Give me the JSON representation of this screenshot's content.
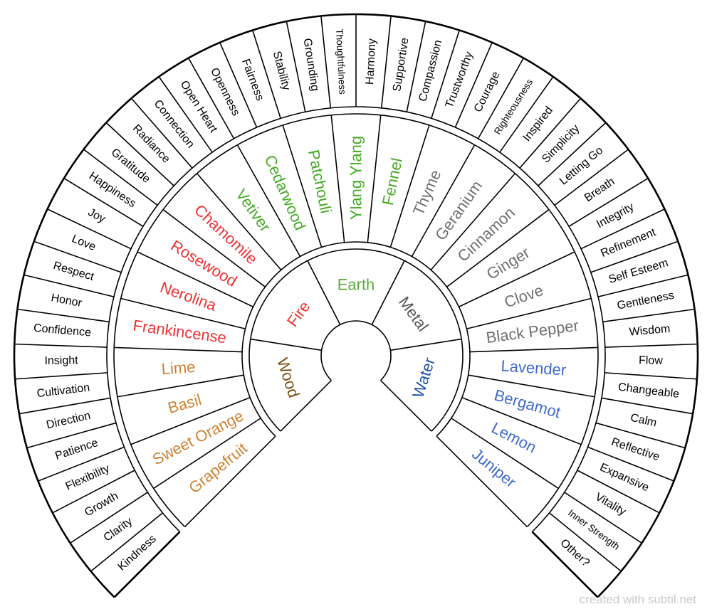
{
  "credit": "created with subtil.net",
  "colors": {
    "line": "#000000",
    "Wood": "#7a4f0e",
    "Fire": "#ee3333",
    "Earth": "#5aaa3c",
    "Metal": "#555555",
    "Water": "#1f4fa8",
    "wood_oil": "#cc8233",
    "fire_oil": "#ee3333",
    "earth_oil": "#44aa22",
    "metal_oil": "#6f6f6f",
    "water_oil": "#3f6acc"
  },
  "elements": [
    {
      "name": "Wood",
      "color_key": "Wood"
    },
    {
      "name": "Fire",
      "color_key": "Fire"
    },
    {
      "name": "Earth",
      "color_key": "Earth"
    },
    {
      "name": "Metal",
      "color_key": "Metal"
    },
    {
      "name": "Water",
      "color_key": "Water"
    }
  ],
  "oils": [
    {
      "name": "Grapefruit",
      "color_key": "wood_oil"
    },
    {
      "name": "Sweet Orange",
      "color_key": "wood_oil"
    },
    {
      "name": "Basil",
      "color_key": "wood_oil"
    },
    {
      "name": "Lime",
      "color_key": "wood_oil"
    },
    {
      "name": "Frankincense",
      "color_key": "fire_oil"
    },
    {
      "name": "Nerolina",
      "color_key": "fire_oil"
    },
    {
      "name": "Rosewood",
      "color_key": "fire_oil"
    },
    {
      "name": "Chamomile",
      "color_key": "fire_oil"
    },
    {
      "name": "Vetiver",
      "color_key": "earth_oil"
    },
    {
      "name": "Cedarwood",
      "color_key": "earth_oil"
    },
    {
      "name": "Patchouli",
      "color_key": "earth_oil"
    },
    {
      "name": "Ylang Ylang",
      "color_key": "earth_oil"
    },
    {
      "name": "Fennel",
      "color_key": "earth_oil"
    },
    {
      "name": "Thyme",
      "color_key": "metal_oil"
    },
    {
      "name": "Geranium",
      "color_key": "metal_oil"
    },
    {
      "name": "Cinnamon",
      "color_key": "metal_oil"
    },
    {
      "name": "Ginger",
      "color_key": "metal_oil"
    },
    {
      "name": "Clove",
      "color_key": "metal_oil"
    },
    {
      "name": "Black Pepper",
      "color_key": "metal_oil"
    },
    {
      "name": "Lavender",
      "color_key": "water_oil"
    },
    {
      "name": "Bergamot",
      "color_key": "water_oil"
    },
    {
      "name": "Lemon",
      "color_key": "water_oil"
    },
    {
      "name": "Juniper",
      "color_key": "water_oil"
    }
  ],
  "qualities": [
    "Kindness",
    "Clarity",
    "Growth",
    "Flexibility",
    "Patience",
    "Direction",
    "Cultivation",
    "Insight",
    "Confidence",
    "Honor",
    "Respect",
    "Love",
    "Joy",
    "Happiness",
    "Gratitude",
    "Radiance",
    "Connection",
    "Open Heart",
    "Openness",
    "Fairness",
    "Stability",
    "Grounding",
    "Thoughtfulness",
    "Harmony",
    "Supportive",
    "Compassion",
    "Trustworthy",
    "Courage",
    "Righteousness",
    "Inspired",
    "Simplicity",
    "Letting Go",
    "Breath",
    "Integrity",
    "Refinement",
    "Self Esteem",
    "Gentleness",
    "Wisdom",
    "Flow",
    "Changeable",
    "Calm",
    "Reflective",
    "Expansive",
    "Vitality",
    "Inner Strength",
    "Other?"
  ]
}
